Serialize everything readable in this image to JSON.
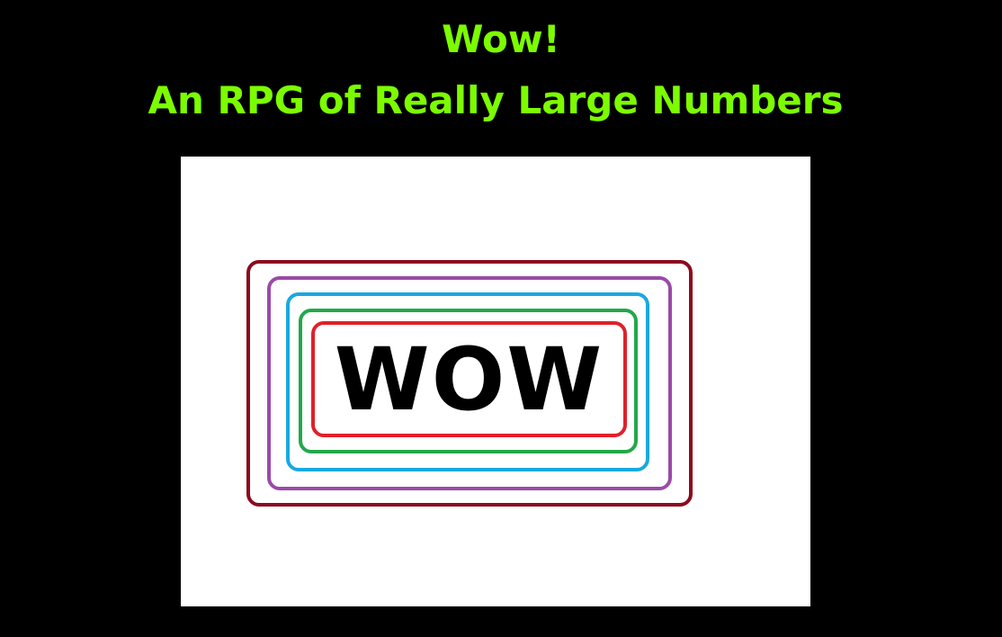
{
  "title": {
    "line1": "Wow!",
    "line2": "An RPG of Really Large Numbers",
    "color": "#7cfc00"
  },
  "logo": {
    "text": "WOW",
    "frame_colors": [
      "#8b0a1e",
      "#9b4aa8",
      "#1aa8e0",
      "#22a84a",
      "#e0202a"
    ]
  }
}
